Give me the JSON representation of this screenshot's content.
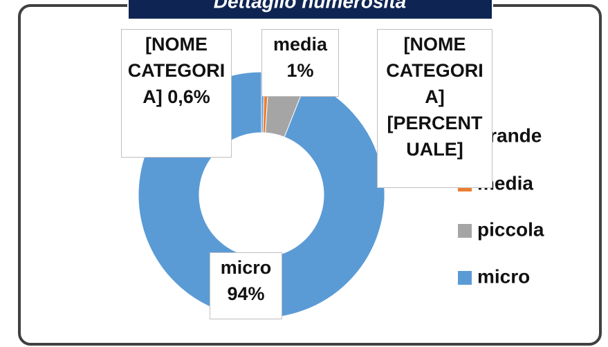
{
  "chart_data": {
    "type": "donut",
    "title": "Dettaglio numerosità",
    "categories": [
      "grande",
      "media",
      "piccola",
      "micro"
    ],
    "values": [
      0.4,
      0.6,
      5,
      94
    ],
    "colors": [
      "#5b9bd5",
      "#ed7d31",
      "#a5a5a5",
      "#5b9bd5"
    ],
    "annotations": [
      "[NOME CATEGORIA] 0,6%",
      "media 1%",
      "[NOME CATEGORIA] [PERCENTUALE]",
      "micro 94%"
    ],
    "legend": "right"
  }
}
